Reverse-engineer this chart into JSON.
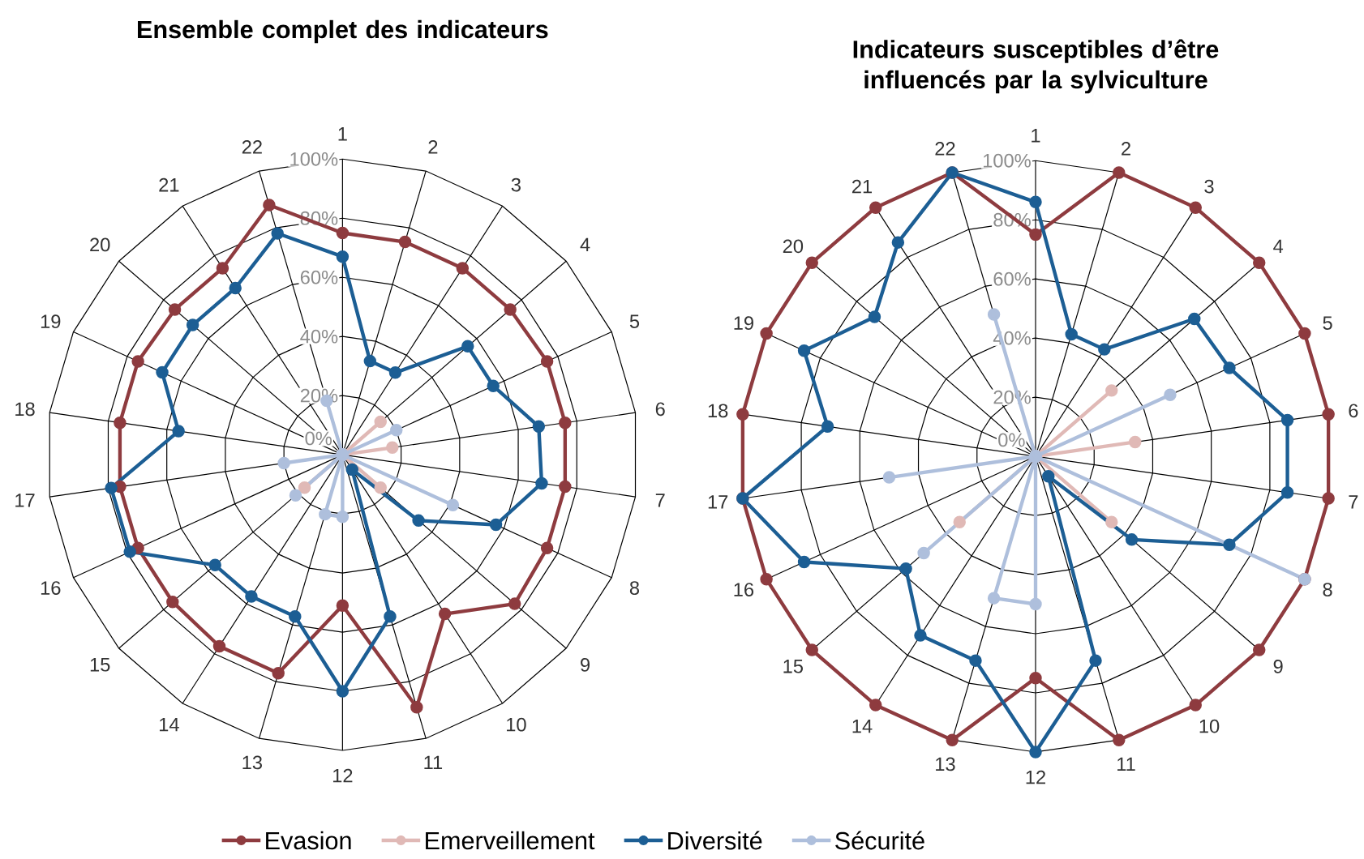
{
  "chart_data": [
    {
      "type": "radar",
      "title": "Ensemble complet des indicateurs",
      "categories": [
        "1",
        "2",
        "3",
        "4",
        "5",
        "6",
        "7",
        "8",
        "9",
        "10",
        "11",
        "12",
        "13",
        "14",
        "15",
        "16",
        "17",
        "18",
        "19",
        "20",
        "21",
        "22"
      ],
      "ylim": [
        0,
        100
      ],
      "yticks": [
        {
          "value": 0,
          "label": "0%"
        },
        {
          "value": 20,
          "label": "20%"
        },
        {
          "value": 40,
          "label": "40%"
        },
        {
          "value": 60,
          "label": "60%"
        },
        {
          "value": 80,
          "label": "80%"
        },
        {
          "value": 100,
          "label": "100%"
        }
      ],
      "marker": "circle",
      "legend": "bottom",
      "grid": true,
      "series": [
        {
          "name": "Evasion",
          "color": "#8e3b3f",
          "values": [
            75,
            75,
            75,
            75,
            76,
            76,
            76,
            76,
            77,
            64,
            89,
            51,
            77,
            77,
            76,
            76,
            76,
            76,
            76,
            75,
            75,
            88
          ]
        },
        {
          "name": "Emerveillement",
          "color": "#e0b9b6",
          "values": [
            0,
            0,
            0,
            17,
            0,
            17,
            0,
            0,
            17,
            0,
            0,
            0,
            0,
            0,
            17,
            0,
            0,
            0,
            0,
            0,
            0,
            0
          ]
        },
        {
          "name": "Diversité",
          "color": "#1c5e94",
          "values": [
            67,
            33,
            33,
            56,
            56,
            67,
            68,
            57,
            34,
            6,
            57,
            80,
            57,
            57,
            57,
            79,
            79,
            56,
            67,
            67,
            67,
            78
          ]
        },
        {
          "name": "Sécurité",
          "color": "#aebfdc",
          "values": [
            0,
            0,
            0,
            0,
            20,
            0,
            0,
            41,
            0,
            0,
            0,
            21,
            21,
            0,
            21,
            0,
            20,
            0,
            0,
            0,
            0,
            19
          ]
        }
      ]
    },
    {
      "type": "radar",
      "title": "Indicateurs susceptibles d’être influencés par la sylviculture",
      "categories": [
        "1",
        "2",
        "3",
        "4",
        "5",
        "6",
        "7",
        "8",
        "9",
        "10",
        "11",
        "12",
        "13",
        "14",
        "15",
        "16",
        "17",
        "18",
        "19",
        "20",
        "21",
        "22"
      ],
      "ylim": [
        0,
        100
      ],
      "yticks": [
        {
          "value": 0,
          "label": "0%"
        },
        {
          "value": 20,
          "label": "20%"
        },
        {
          "value": 40,
          "label": "40%"
        },
        {
          "value": 60,
          "label": "60%"
        },
        {
          "value": 80,
          "label": "80%"
        },
        {
          "value": 100,
          "label": "100%"
        }
      ],
      "marker": "circle",
      "grid": true,
      "series": [
        {
          "name": "Evasion",
          "color": "#8e3b3f",
          "values": [
            75,
            100,
            100,
            100,
            100,
            100,
            100,
            100,
            100,
            100,
            100,
            75,
            100,
            100,
            100,
            100,
            100,
            100,
            100,
            100,
            100,
            100
          ]
        },
        {
          "name": "Emerveillement",
          "color": "#e0b9b6",
          "values": [
            0,
            0,
            0,
            34,
            0,
            34,
            0,
            0,
            34,
            0,
            0,
            0,
            0,
            0,
            34,
            0,
            0,
            0,
            0,
            0,
            0,
            0
          ]
        },
        {
          "name": "Diversité",
          "color": "#1c5e94",
          "values": [
            86,
            43,
            43,
            71,
            72,
            86,
            86,
            72,
            43,
            8,
            72,
            100,
            72,
            72,
            58,
            86,
            100,
            71,
            86,
            72,
            86,
            100
          ]
        },
        {
          "name": "Sécurité",
          "color": "#aebfdc",
          "values": [
            0,
            0,
            0,
            0,
            50,
            0,
            0,
            100,
            0,
            0,
            0,
            50,
            50,
            0,
            50,
            0,
            50,
            0,
            0,
            0,
            0,
            50
          ]
        }
      ]
    }
  ]
}
